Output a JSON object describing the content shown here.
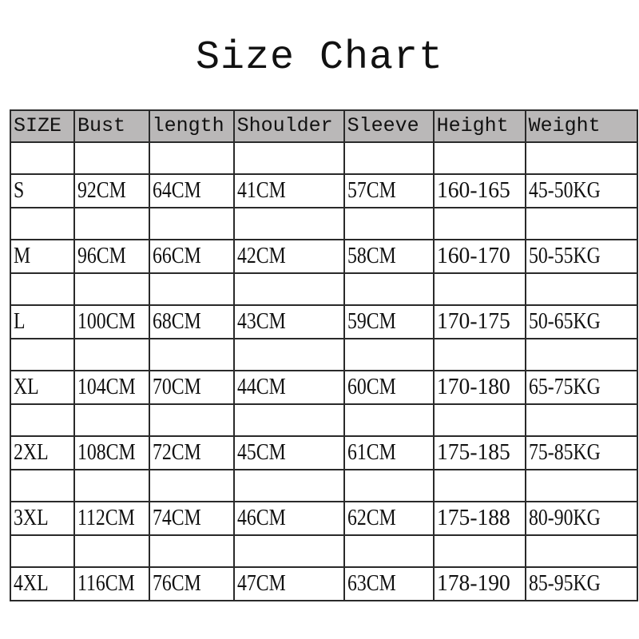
{
  "title": "Size Chart",
  "header_bg": "#bab8b8",
  "columns": [
    "SIZE",
    "Bust",
    "length",
    "Shoulder",
    "Sleeve",
    "Height",
    "Weight"
  ],
  "rows": [
    [
      "S",
      "92CM",
      "64CM",
      "41CM",
      "57CM",
      "160-165",
      "45-50KG"
    ],
    [
      "M",
      "96CM",
      "66CM",
      "42CM",
      "58CM",
      "160-170",
      "50-55KG"
    ],
    [
      "L",
      "100CM",
      "68CM",
      "43CM",
      "59CM",
      "170-175",
      "50-65KG"
    ],
    [
      "XL",
      "104CM",
      "70CM",
      "44CM",
      "60CM",
      "170-180",
      "65-75KG"
    ],
    [
      "2XL",
      "108CM",
      "72CM",
      "45CM",
      "61CM",
      "175-185",
      "75-85KG"
    ],
    [
      "3XL",
      "112CM",
      "74CM",
      "46CM",
      "62CM",
      "175-188",
      "80-90KG"
    ],
    [
      "4XL",
      "116CM",
      "76CM",
      "47CM",
      "63CM",
      "178-190",
      "85-95KG"
    ]
  ]
}
